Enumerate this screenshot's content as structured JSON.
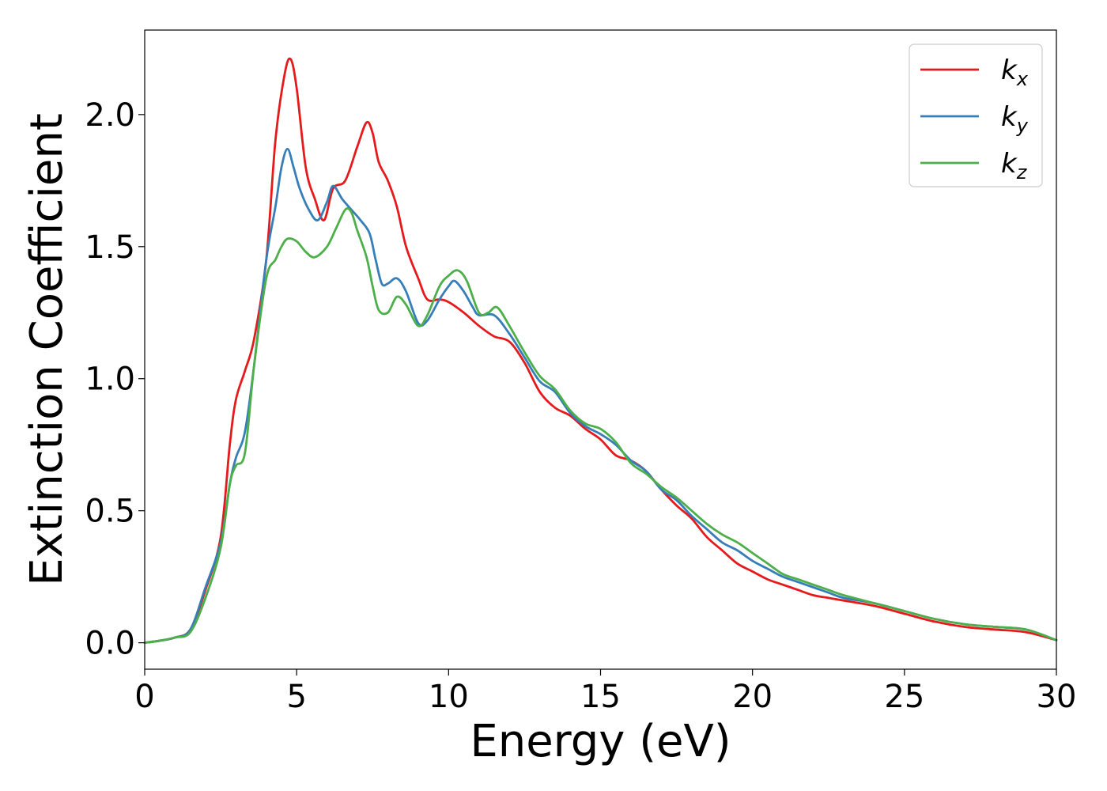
{
  "chart_data": {
    "type": "line",
    "title": "",
    "xlabel": "Energy (eV)",
    "ylabel": "Extinction Coefficient",
    "xlim": [
      0,
      30
    ],
    "ylim": [
      -0.1,
      2.32
    ],
    "xticks": [
      0,
      5,
      10,
      15,
      20,
      25,
      30
    ],
    "yticks": [
      0.0,
      0.5,
      1.0,
      1.5,
      2.0
    ],
    "xtick_labels": [
      "0",
      "5",
      "10",
      "15",
      "20",
      "25",
      "30"
    ],
    "ytick_labels": [
      "0.0",
      "0.5",
      "1.0",
      "1.5",
      "2.0"
    ],
    "grid": false,
    "legend_position": "top-right",
    "series": [
      {
        "name": "k_x",
        "legend_base": "k",
        "legend_sub": "x",
        "color": "#e41a1c",
        "points": [
          [
            0,
            0
          ],
          [
            0.5,
            0.008
          ],
          [
            1.0,
            0.02
          ],
          [
            1.5,
            0.05
          ],
          [
            2.0,
            0.2
          ],
          [
            2.5,
            0.4
          ],
          [
            2.8,
            0.75
          ],
          [
            3.0,
            0.92
          ],
          [
            3.3,
            1.03
          ],
          [
            3.6,
            1.15
          ],
          [
            4.0,
            1.45
          ],
          [
            4.3,
            1.9
          ],
          [
            4.6,
            2.15
          ],
          [
            4.8,
            2.21
          ],
          [
            5.0,
            2.1
          ],
          [
            5.3,
            1.8
          ],
          [
            5.6,
            1.68
          ],
          [
            5.9,
            1.6
          ],
          [
            6.2,
            1.72
          ],
          [
            6.6,
            1.75
          ],
          [
            7.0,
            1.88
          ],
          [
            7.3,
            1.97
          ],
          [
            7.5,
            1.93
          ],
          [
            7.7,
            1.82
          ],
          [
            8.0,
            1.75
          ],
          [
            8.3,
            1.65
          ],
          [
            8.6,
            1.5
          ],
          [
            9.0,
            1.38
          ],
          [
            9.3,
            1.3
          ],
          [
            9.7,
            1.3
          ],
          [
            10.0,
            1.29
          ],
          [
            10.5,
            1.25
          ],
          [
            11.0,
            1.2
          ],
          [
            11.5,
            1.16
          ],
          [
            12.0,
            1.14
          ],
          [
            12.5,
            1.06
          ],
          [
            13.0,
            0.95
          ],
          [
            13.5,
            0.89
          ],
          [
            14.0,
            0.86
          ],
          [
            14.5,
            0.81
          ],
          [
            15.0,
            0.77
          ],
          [
            15.5,
            0.71
          ],
          [
            16.0,
            0.69
          ],
          [
            16.5,
            0.65
          ],
          [
            17.0,
            0.58
          ],
          [
            17.5,
            0.52
          ],
          [
            18.0,
            0.47
          ],
          [
            18.5,
            0.4
          ],
          [
            19.0,
            0.35
          ],
          [
            19.5,
            0.3
          ],
          [
            20.0,
            0.27
          ],
          [
            20.5,
            0.24
          ],
          [
            21.0,
            0.22
          ],
          [
            21.5,
            0.2
          ],
          [
            22.0,
            0.18
          ],
          [
            22.5,
            0.17
          ],
          [
            23.0,
            0.16
          ],
          [
            24.0,
            0.14
          ],
          [
            25.0,
            0.11
          ],
          [
            26.0,
            0.08
          ],
          [
            27.0,
            0.06
          ],
          [
            28.0,
            0.05
          ],
          [
            29.0,
            0.04
          ],
          [
            30.0,
            0.01
          ]
        ]
      },
      {
        "name": "k_y",
        "legend_base": "k",
        "legend_sub": "y",
        "color": "#377eb8",
        "points": [
          [
            0,
            0
          ],
          [
            0.5,
            0.008
          ],
          [
            1.0,
            0.02
          ],
          [
            1.5,
            0.05
          ],
          [
            2.0,
            0.21
          ],
          [
            2.5,
            0.38
          ],
          [
            2.8,
            0.6
          ],
          [
            3.0,
            0.7
          ],
          [
            3.3,
            0.8
          ],
          [
            3.6,
            1.05
          ],
          [
            4.0,
            1.45
          ],
          [
            4.3,
            1.65
          ],
          [
            4.5,
            1.8
          ],
          [
            4.7,
            1.87
          ],
          [
            4.9,
            1.8
          ],
          [
            5.1,
            1.72
          ],
          [
            5.4,
            1.64
          ],
          [
            5.7,
            1.6
          ],
          [
            6.0,
            1.67
          ],
          [
            6.2,
            1.73
          ],
          [
            6.5,
            1.68
          ],
          [
            6.8,
            1.64
          ],
          [
            7.1,
            1.6
          ],
          [
            7.4,
            1.55
          ],
          [
            7.6,
            1.45
          ],
          [
            7.8,
            1.36
          ],
          [
            8.0,
            1.36
          ],
          [
            8.3,
            1.38
          ],
          [
            8.6,
            1.33
          ],
          [
            9.0,
            1.21
          ],
          [
            9.3,
            1.22
          ],
          [
            9.7,
            1.3
          ],
          [
            10.0,
            1.35
          ],
          [
            10.2,
            1.37
          ],
          [
            10.5,
            1.33
          ],
          [
            10.8,
            1.27
          ],
          [
            11.0,
            1.24
          ],
          [
            11.5,
            1.24
          ],
          [
            12.0,
            1.17
          ],
          [
            12.5,
            1.08
          ],
          [
            13.0,
            0.99
          ],
          [
            13.5,
            0.95
          ],
          [
            14.0,
            0.87
          ],
          [
            14.5,
            0.82
          ],
          [
            15.0,
            0.79
          ],
          [
            15.5,
            0.75
          ],
          [
            16.0,
            0.69
          ],
          [
            16.5,
            0.65
          ],
          [
            17.0,
            0.58
          ],
          [
            17.5,
            0.54
          ],
          [
            18.0,
            0.48
          ],
          [
            18.5,
            0.43
          ],
          [
            19.0,
            0.38
          ],
          [
            19.5,
            0.35
          ],
          [
            20.0,
            0.31
          ],
          [
            20.5,
            0.28
          ],
          [
            21.0,
            0.25
          ],
          [
            21.5,
            0.23
          ],
          [
            22.0,
            0.21
          ],
          [
            22.5,
            0.19
          ],
          [
            23.0,
            0.17
          ],
          [
            24.0,
            0.15
          ],
          [
            25.0,
            0.12
          ],
          [
            26.0,
            0.09
          ],
          [
            27.0,
            0.07
          ],
          [
            28.0,
            0.06
          ],
          [
            29.0,
            0.05
          ],
          [
            30.0,
            0.01
          ]
        ]
      },
      {
        "name": "k_z",
        "legend_base": "k",
        "legend_sub": "z",
        "color": "#4daf4a",
        "points": [
          [
            0,
            0
          ],
          [
            0.5,
            0.008
          ],
          [
            1.0,
            0.02
          ],
          [
            1.5,
            0.04
          ],
          [
            2.0,
            0.17
          ],
          [
            2.5,
            0.36
          ],
          [
            2.8,
            0.6
          ],
          [
            3.0,
            0.67
          ],
          [
            3.3,
            0.72
          ],
          [
            3.6,
            1.05
          ],
          [
            4.0,
            1.38
          ],
          [
            4.3,
            1.45
          ],
          [
            4.5,
            1.5
          ],
          [
            4.7,
            1.53
          ],
          [
            5.0,
            1.52
          ],
          [
            5.3,
            1.48
          ],
          [
            5.6,
            1.46
          ],
          [
            6.0,
            1.5
          ],
          [
            6.3,
            1.57
          ],
          [
            6.6,
            1.64
          ],
          [
            6.8,
            1.63
          ],
          [
            7.0,
            1.56
          ],
          [
            7.3,
            1.46
          ],
          [
            7.5,
            1.35
          ],
          [
            7.7,
            1.26
          ],
          [
            8.0,
            1.25
          ],
          [
            8.3,
            1.31
          ],
          [
            8.6,
            1.28
          ],
          [
            9.0,
            1.2
          ],
          [
            9.3,
            1.24
          ],
          [
            9.7,
            1.35
          ],
          [
            10.0,
            1.39
          ],
          [
            10.3,
            1.41
          ],
          [
            10.6,
            1.37
          ],
          [
            11.0,
            1.25
          ],
          [
            11.3,
            1.25
          ],
          [
            11.6,
            1.27
          ],
          [
            12.0,
            1.2
          ],
          [
            12.5,
            1.1
          ],
          [
            13.0,
            1.01
          ],
          [
            13.5,
            0.96
          ],
          [
            14.0,
            0.88
          ],
          [
            14.5,
            0.83
          ],
          [
            15.0,
            0.81
          ],
          [
            15.5,
            0.76
          ],
          [
            16.0,
            0.68
          ],
          [
            16.5,
            0.64
          ],
          [
            17.0,
            0.59
          ],
          [
            17.5,
            0.55
          ],
          [
            18.0,
            0.5
          ],
          [
            18.5,
            0.45
          ],
          [
            19.0,
            0.41
          ],
          [
            19.5,
            0.38
          ],
          [
            20.0,
            0.34
          ],
          [
            20.5,
            0.3
          ],
          [
            21.0,
            0.26
          ],
          [
            21.5,
            0.24
          ],
          [
            22.0,
            0.22
          ],
          [
            22.5,
            0.2
          ],
          [
            23.0,
            0.18
          ],
          [
            24.0,
            0.15
          ],
          [
            25.0,
            0.12
          ],
          [
            26.0,
            0.09
          ],
          [
            27.0,
            0.07
          ],
          [
            28.0,
            0.06
          ],
          [
            29.0,
            0.05
          ],
          [
            30.0,
            0.01
          ]
        ]
      }
    ]
  }
}
